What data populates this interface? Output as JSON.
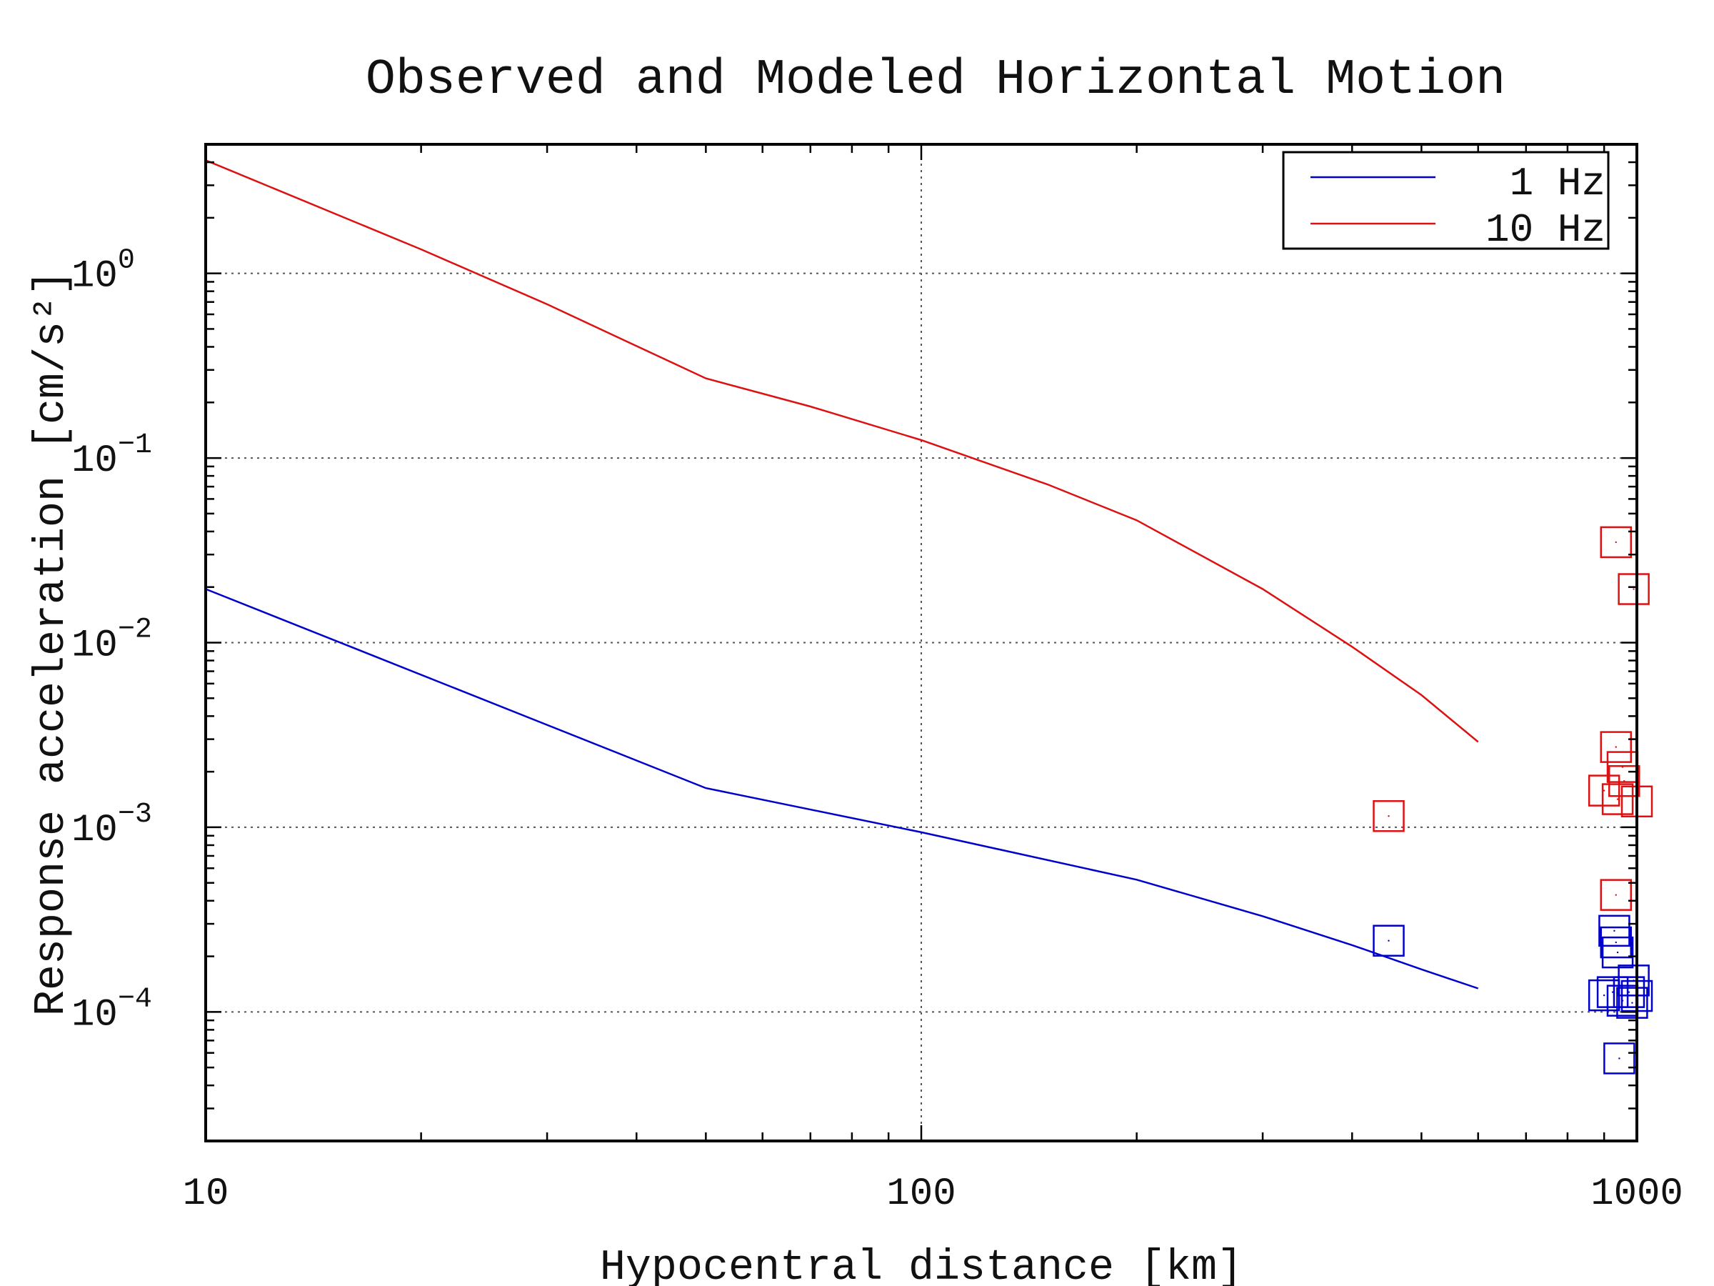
{
  "chart_data": {
    "type": "line",
    "title": "Observed and Modeled Horizontal Motion",
    "xlabel": "Hypocentral distance [km]",
    "ylabel": "Response acceleration [cm/s²]",
    "x_scale": "log",
    "y_scale": "log",
    "xlim": [
      10,
      1000
    ],
    "ylim": [
      2e-05,
      5
    ],
    "x_ticks": [
      {
        "value": 10,
        "label": "10"
      },
      {
        "value": 100,
        "label": "100"
      },
      {
        "value": 1000,
        "label": "1000"
      }
    ],
    "y_ticks": [
      {
        "value": 1,
        "base": "10",
        "exp": "0"
      },
      {
        "value": 0.1,
        "base": "10",
        "exp": "−1"
      },
      {
        "value": 0.01,
        "base": "10",
        "exp": "−2"
      },
      {
        "value": 0.001,
        "base": "10",
        "exp": "−3"
      },
      {
        "value": 0.0001,
        "base": "10",
        "exp": "−4"
      }
    ],
    "grid": true,
    "legend_position": "top-right",
    "series": [
      {
        "name": "1 Hz",
        "color": "#0000cc",
        "model": {
          "x": [
            10,
            50,
            100,
            200,
            300,
            400,
            500,
            600
          ],
          "y": [
            0.0195,
            0.00163,
            0.00094,
            0.00052,
            0.00033,
            0.00023,
            0.00017,
            0.000134
          ]
        },
        "observed": {
          "x": [
            450,
            900,
            925,
            930,
            935,
            940,
            945,
            955,
            975,
            985,
            990,
            1000
          ],
          "y": [
            0.000243,
            0.000123,
            0.000128,
            0.000275,
            0.000238,
            0.00021,
            5.6e-05,
            0.000115,
            0.000128,
            0.000112,
            0.000148,
            0.000122
          ]
        }
      },
      {
        "name": "10 Hz",
        "color": "#dd1111",
        "model": {
          "x": [
            10,
            20,
            30,
            50,
            70,
            100,
            150,
            200,
            300,
            400,
            500,
            600
          ],
          "y": [
            4.1,
            1.35,
            0.68,
            0.27,
            0.19,
            0.125,
            0.072,
            0.046,
            0.0195,
            0.0095,
            0.0052,
            0.0029
          ]
        },
        "observed": {
          "x": [
            450,
            900,
            935,
            935,
            935,
            940,
            955,
            960,
            990,
            1000
          ],
          "y": [
            0.00115,
            0.00158,
            0.035,
            0.00272,
            0.00043,
            0.00142,
            0.00212,
            0.00178,
            0.0195,
            0.00138
          ]
        }
      }
    ]
  }
}
